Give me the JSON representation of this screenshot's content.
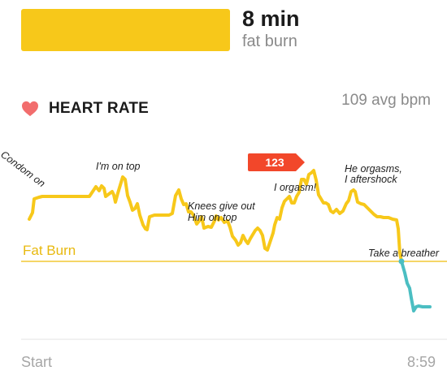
{
  "zone": {
    "value": "8 min",
    "label": "fat burn",
    "bar_color": "#f7c81a"
  },
  "heart_rate": {
    "title": "HEART RATE",
    "avg": "109 avg bpm",
    "icon": "heart-icon",
    "icon_color": "#f26d6d"
  },
  "axis": {
    "start": "Start",
    "end": "8:59"
  },
  "peak_badge": {
    "value": "123",
    "color": "#f2472a"
  },
  "colors": {
    "in_zone": "#f7c81a",
    "below_zone": "#4bbec2",
    "zone_line": "#f2c935",
    "peak": "#f2472a"
  },
  "chart_data": {
    "type": "line",
    "peak_value": "123",
    "zone_line_label": "Fat Burn",
    "annotations": [
      {
        "text": "Condom on"
      },
      {
        "text": "I'm on top"
      },
      {
        "text": "Knees give out"
      },
      {
        "text": "Him on top"
      },
      {
        "text": "I orgasm!"
      },
      {
        "text": "He orgasms,"
      },
      {
        "text": "I aftershock"
      },
      {
        "text": "Take a breather"
      }
    ]
  }
}
